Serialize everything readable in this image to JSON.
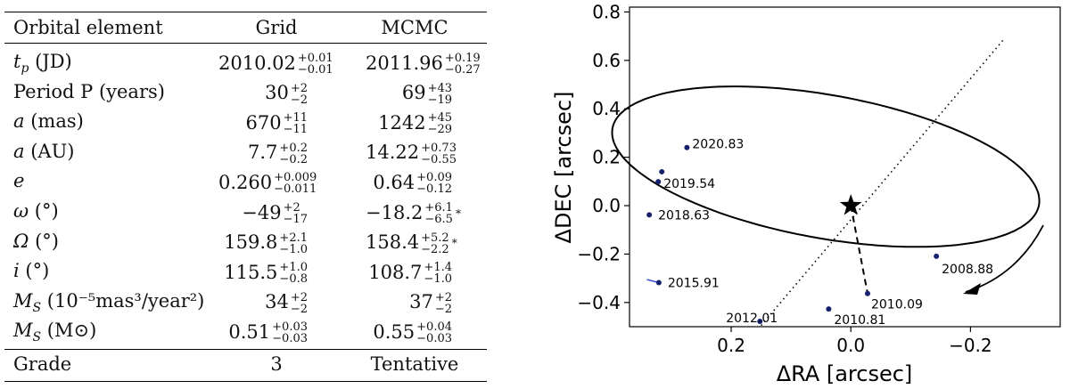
{
  "table": {
    "headers": [
      "Orbital element",
      "Grid",
      "MCMC"
    ],
    "rows": [
      {
        "label_main": "t",
        "label_sub": "p",
        "label_rest": " (JD)",
        "grid": {
          "val": "2010.02",
          "plus": "+0.01",
          "minus": "−0.01"
        },
        "mcmc": {
          "val": "2011.96",
          "plus": "+0.19",
          "minus": "−0.27",
          "star": ""
        }
      },
      {
        "label_main": "Period ",
        "label_sub": "",
        "label_rest": "P (years)",
        "grid": {
          "val": "30",
          "plus": "+2",
          "minus": "−2"
        },
        "mcmc": {
          "val": "69",
          "plus": "+43",
          "minus": "−19",
          "star": ""
        }
      },
      {
        "label_main": "a",
        "label_sub": "",
        "label_rest": " (mas)",
        "grid": {
          "val": "670",
          "plus": "+11",
          "minus": "−11"
        },
        "mcmc": {
          "val": "1242",
          "plus": "+45",
          "minus": "−29",
          "star": ""
        }
      },
      {
        "label_main": "a",
        "label_sub": "",
        "label_rest": " (AU)",
        "grid": {
          "val": "7.7",
          "plus": "+0.2",
          "minus": "−0.2"
        },
        "mcmc": {
          "val": "14.22",
          "plus": "+0.73",
          "minus": "−0.55",
          "star": ""
        }
      },
      {
        "label_main": "e",
        "label_sub": "",
        "label_rest": "",
        "grid": {
          "val": "0.260",
          "plus": "+0.009",
          "minus": "−0.011"
        },
        "mcmc": {
          "val": "0.64",
          "plus": "+0.09",
          "minus": "−0.12",
          "star": ""
        }
      },
      {
        "label_main": "ω",
        "label_sub": "",
        "label_rest": " (°)",
        "grid": {
          "val": "−49",
          "plus": "+2",
          "minus": "−17"
        },
        "mcmc": {
          "val": "−18.2",
          "plus": "+6.1",
          "minus": "−6.5",
          "star": "*"
        }
      },
      {
        "label_main": "Ω",
        "label_sub": "",
        "label_rest": " (°)",
        "grid": {
          "val": "159.8",
          "plus": "+2.1",
          "minus": "−1.0"
        },
        "mcmc": {
          "val": "158.4",
          "plus": "+5.2",
          "minus": "−2.2",
          "star": "*"
        }
      },
      {
        "label_main": "i",
        "label_sub": "",
        "label_rest": " (°)",
        "grid": {
          "val": "115.5",
          "plus": "+1.0",
          "minus": "−0.8"
        },
        "mcmc": {
          "val": "108.7",
          "plus": "+1.4",
          "minus": "−1.0",
          "star": ""
        }
      },
      {
        "label_main": "M",
        "label_sub": "S",
        "label_rest": " (10⁻⁵mas³/year²)",
        "grid": {
          "val": "34",
          "plus": "+2",
          "minus": "−2"
        },
        "mcmc": {
          "val": "37",
          "plus": "+2",
          "minus": "−2",
          "star": ""
        }
      },
      {
        "label_main": "M",
        "label_sub": "S",
        "label_rest": " (M⊙)",
        "grid": {
          "val": "0.51",
          "plus": "+0.03",
          "minus": "−0.03"
        },
        "mcmc": {
          "val": "0.55",
          "plus": "+0.04",
          "minus": "−0.03",
          "star": ""
        }
      }
    ],
    "grade": {
      "label": "Grade",
      "grid": "3",
      "mcmc": "Tentative"
    }
  },
  "chart_data": {
    "type": "scatter",
    "title": "",
    "xlabel": "ΔRA [arcsec]",
    "ylabel": "ΔDEC [arcsec]",
    "xlim": [
      0.37,
      -0.35
    ],
    "ylim": [
      -0.5,
      0.82
    ],
    "xticks": [
      0.2,
      0.0,
      -0.2
    ],
    "xtick_labels": [
      "0.2",
      "0.0",
      "−0.2"
    ],
    "yticks": [
      -0.4,
      -0.2,
      0.0,
      0.2,
      0.4,
      0.6,
      0.8
    ],
    "ytick_labels": [
      "−0.4",
      "−0.2",
      "0.0",
      "0.2",
      "0.4",
      "0.6",
      "0.8"
    ],
    "star": {
      "x": 0.0,
      "y": 0.0
    },
    "epochs": [
      {
        "label": "2008.88",
        "x": -0.143,
        "y": -0.209
      },
      {
        "label": "2010.09",
        "x": -0.028,
        "y": -0.363
      },
      {
        "label": "2010.81",
        "x": 0.037,
        "y": -0.427
      },
      {
        "label": "2012.01",
        "x": 0.152,
        "y": -0.478
      },
      {
        "label": "2015.91",
        "x": 0.321,
        "y": -0.318
      },
      {
        "label": "2018.63",
        "x": 0.337,
        "y": -0.038
      },
      {
        "label": "2019.54",
        "x": 0.322,
        "y": 0.099
      },
      {
        "label": "2020.83",
        "x": 0.274,
        "y": 0.24
      }
    ],
    "extra_points": [
      {
        "x": 0.316,
        "y": 0.14
      }
    ],
    "periastron": {
      "x": -0.028,
      "y": -0.363
    },
    "line_of_nodes": [
      {
        "x": 0.15,
        "y": -0.495
      },
      {
        "x": -0.255,
        "y": 0.685
      }
    ],
    "orbit": {
      "center_x": 0.042,
      "center_y": 0.161,
      "semi_major": 0.412,
      "semi_minor": 0.26,
      "angle_deg": 40
    }
  }
}
